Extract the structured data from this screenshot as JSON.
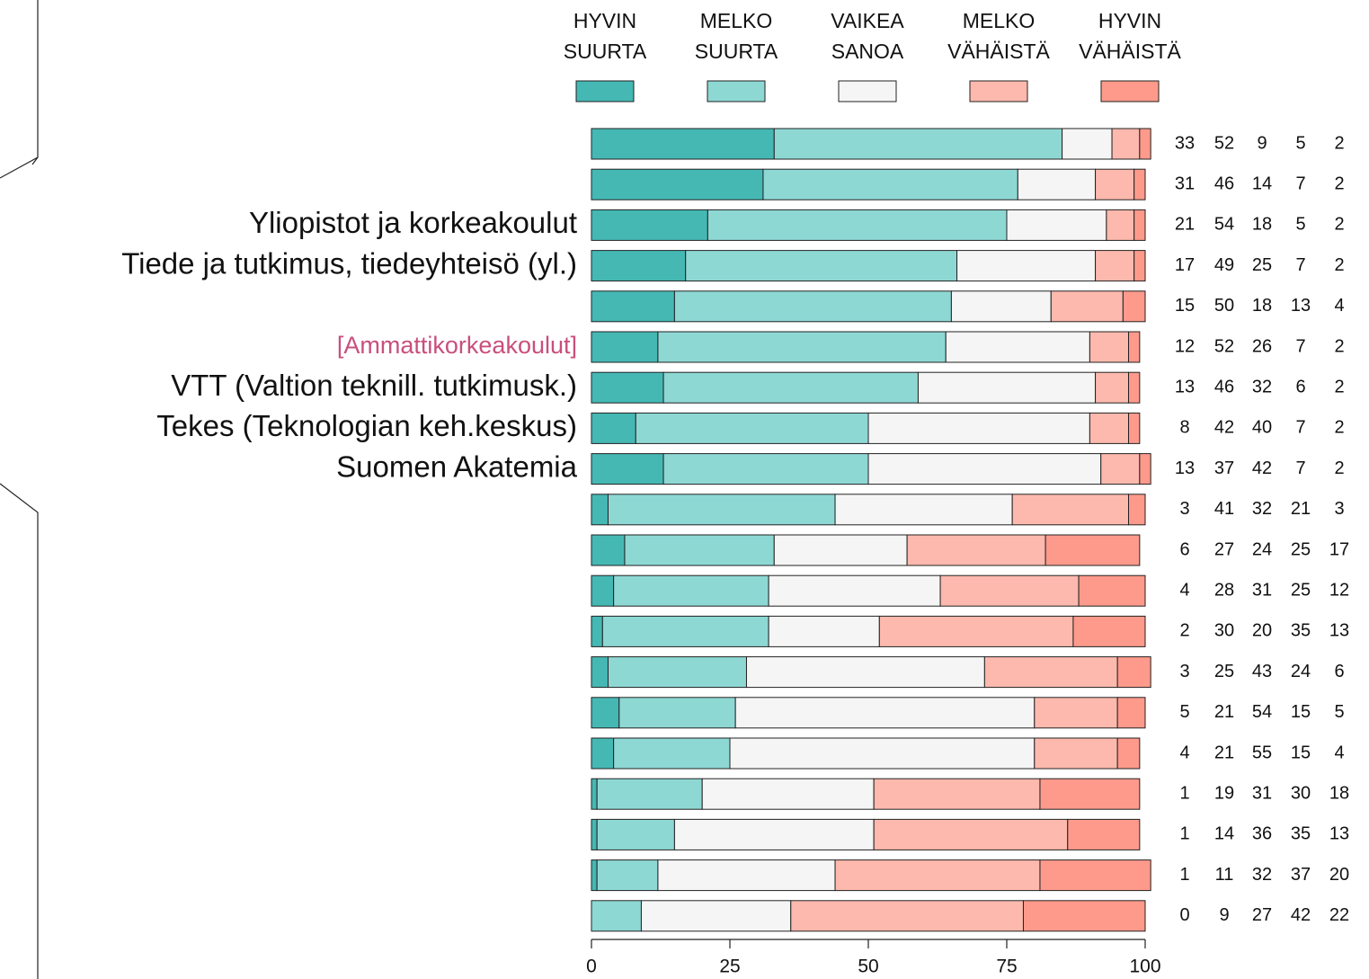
{
  "chart_data": {
    "type": "stacked_barh",
    "categories": [
      null,
      null,
      "Yliopistot ja korkeakoulut",
      "Tiede ja tutkimus, tiedeyhteisö (yl.)",
      null,
      "[Ammattikorkeakoulut]",
      "VTT (Valtion teknill. tutkimusk.)",
      "Tekes (Teknologian keh.keskus)",
      "Suomen Akatemia",
      null,
      null,
      null,
      null,
      null,
      null,
      null,
      null,
      null,
      null,
      null
    ],
    "category_colors": [
      "#111111",
      "#111111",
      "#111111",
      "#111111",
      "#111111",
      "#c94f7c",
      "#111111",
      "#111111",
      "#111111",
      "#111111",
      "#111111",
      "#111111",
      "#111111",
      "#111111",
      "#111111",
      "#111111",
      "#111111",
      "#111111",
      "#111111",
      "#111111"
    ],
    "series": [
      {
        "name": "HYVIN SUURTA",
        "color": "#45b8b4",
        "values": [
          33,
          31,
          21,
          17,
          15,
          12,
          13,
          8,
          13,
          3,
          6,
          4,
          2,
          3,
          5,
          4,
          1,
          1,
          1,
          0
        ]
      },
      {
        "name": "MELKO SUURTA",
        "color": "#8ed8d4",
        "values": [
          52,
          46,
          54,
          49,
          50,
          52,
          46,
          42,
          37,
          41,
          27,
          28,
          30,
          25,
          21,
          21,
          19,
          14,
          11,
          9
        ]
      },
      {
        "name": "VAIKEA SANOA",
        "color": "#f5f5f5",
        "values": [
          9,
          14,
          18,
          25,
          18,
          26,
          32,
          40,
          42,
          32,
          24,
          31,
          20,
          43,
          54,
          55,
          31,
          36,
          32,
          27
        ]
      },
      {
        "name": "MELKO VÄHÄISTÄ",
        "color": "#fdb9ad",
        "values": [
          5,
          7,
          5,
          7,
          13,
          7,
          6,
          7,
          7,
          21,
          25,
          25,
          35,
          24,
          15,
          15,
          30,
          35,
          37,
          42
        ]
      },
      {
        "name": "HYVIN VÄHÄISTÄ",
        "color": "#fd9a8b",
        "values": [
          2,
          2,
          2,
          2,
          4,
          2,
          2,
          2,
          2,
          3,
          17,
          12,
          13,
          6,
          5,
          4,
          18,
          13,
          20,
          22
        ]
      }
    ],
    "xlim": [
      0,
      100
    ],
    "xticks": [
      0,
      25,
      50,
      75,
      100
    ]
  }
}
